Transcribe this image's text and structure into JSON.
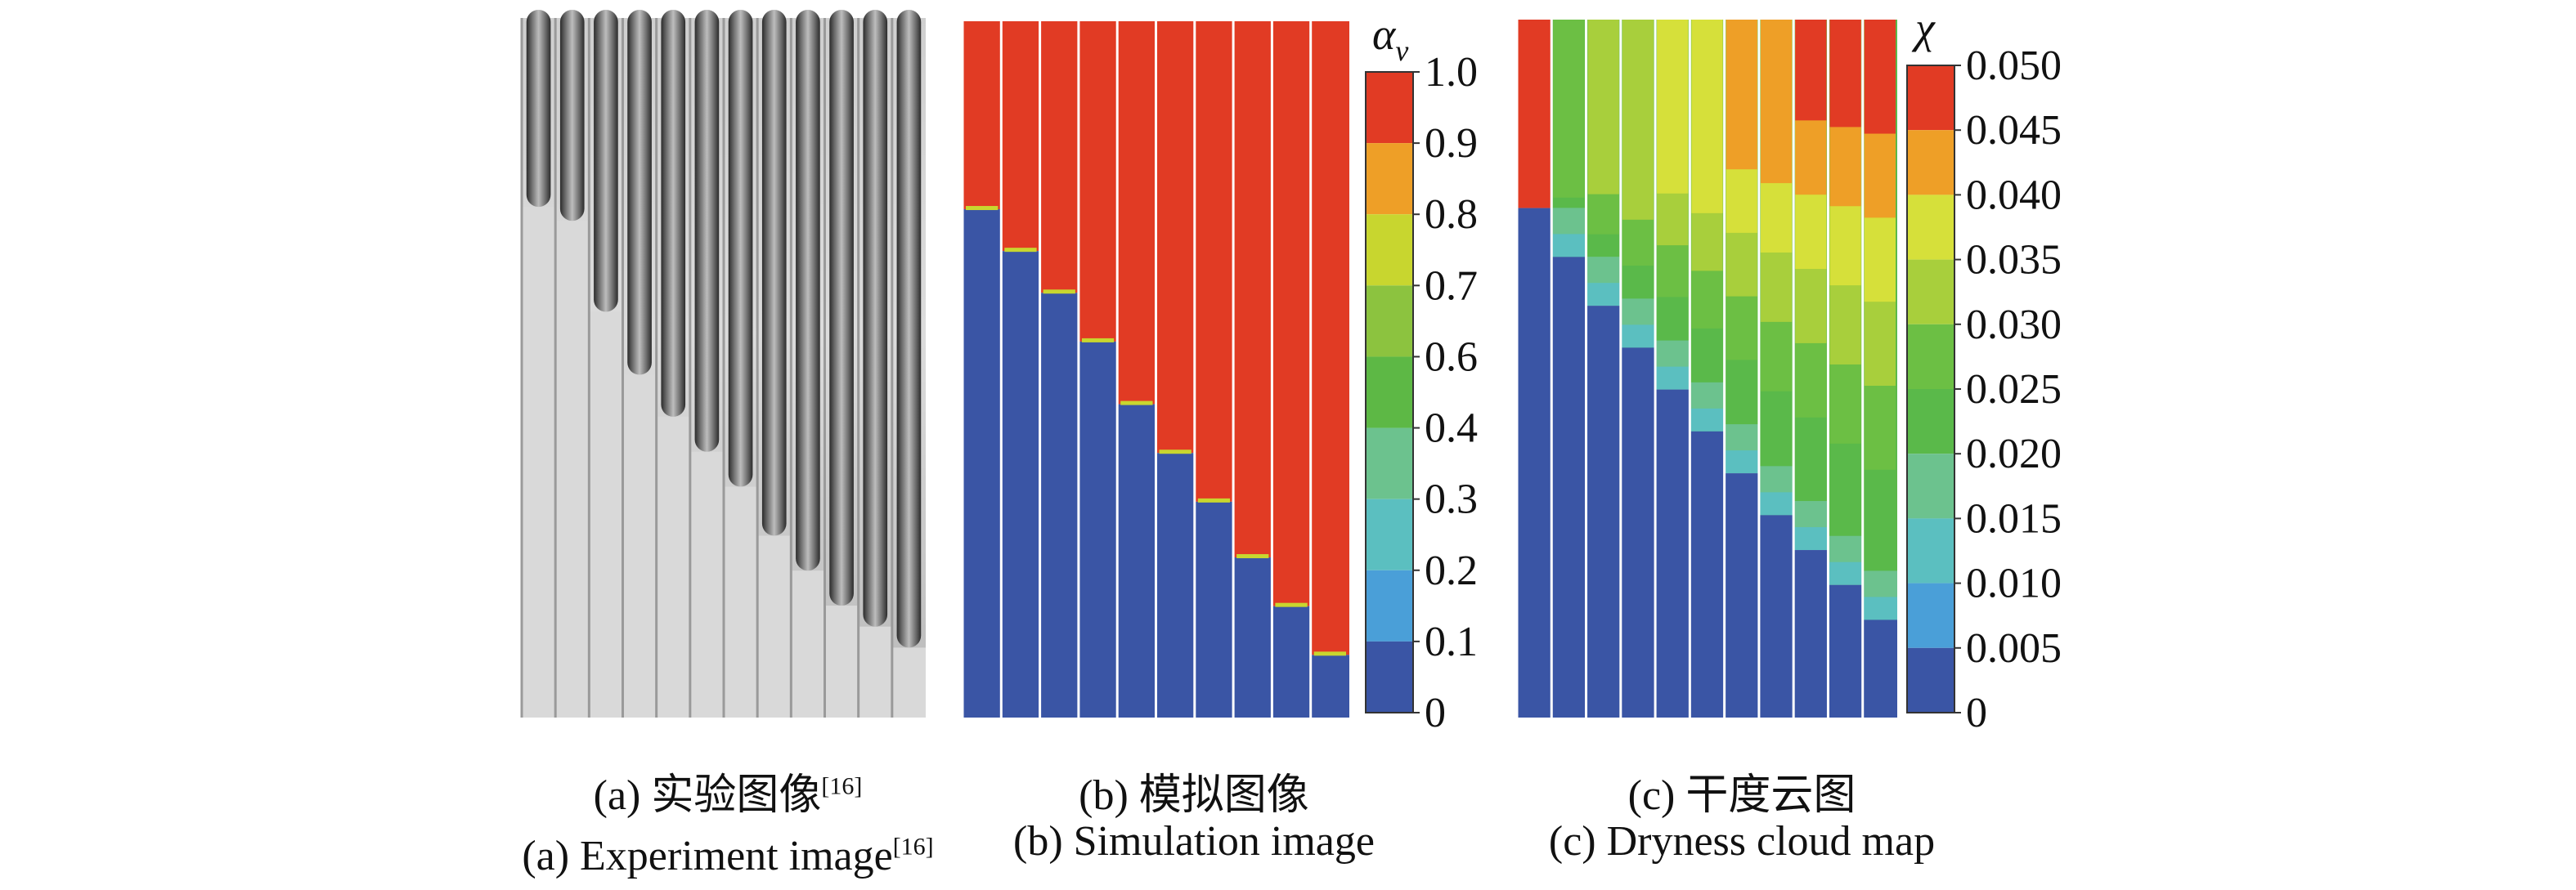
{
  "panels": [
    {
      "id": "a",
      "caption_cn_prefix": "(a) 实验图像",
      "caption_cn_ref": "[16]",
      "caption_en_prefix": "(a) Experiment image",
      "caption_en_ref": "[16]",
      "channel_liquid_levels": [
        0.73,
        0.71,
        0.58,
        0.49,
        0.43,
        0.38,
        0.33,
        0.26,
        0.21,
        0.16,
        0.13,
        0.1
      ]
    },
    {
      "id": "b",
      "caption_cn": "(b) 模拟图像",
      "caption_en": "(b) Simulation image",
      "colorbar": {
        "symbol": "αv",
        "symbol_main": "α",
        "symbol_sub": "v",
        "ticks": [
          "1.0",
          "0.9",
          "0.8",
          "0.7",
          "0.6",
          "0.4",
          "0.3",
          "0.2",
          "0.1",
          "0"
        ],
        "colors": [
          "#e13b24",
          "#ee9f27",
          "#c8d62f",
          "#8cc33f",
          "#5db845",
          "#6cc28e",
          "#5bbfc0",
          "#4a9fd8",
          "#3a55a5"
        ]
      },
      "channel_liquid_levels": [
        0.73,
        0.67,
        0.61,
        0.54,
        0.45,
        0.38,
        0.31,
        0.23,
        0.16,
        0.09
      ]
    },
    {
      "id": "c",
      "caption_cn": "(c) 干度云图",
      "caption_en": "(c) Dryness cloud map",
      "colorbar": {
        "symbol": "χ",
        "ticks": [
          "0.050",
          "0.045",
          "0.040",
          "0.035",
          "0.030",
          "0.025",
          "0.020",
          "0.015",
          "0.010",
          "0.005",
          "0"
        ],
        "colors": [
          "#e13b24",
          "#ee9f27",
          "#d6e03a",
          "#a8cf3c",
          "#6cbf44",
          "#5ab94a",
          "#6cc28e",
          "#5bbfc0",
          "#4a9fd8",
          "#3a55a5"
        ]
      },
      "channel_liquid_levels": [
        0.73,
        0.66,
        0.59,
        0.53,
        0.47,
        0.41,
        0.35,
        0.29,
        0.24,
        0.19,
        0.14
      ]
    }
  ]
}
